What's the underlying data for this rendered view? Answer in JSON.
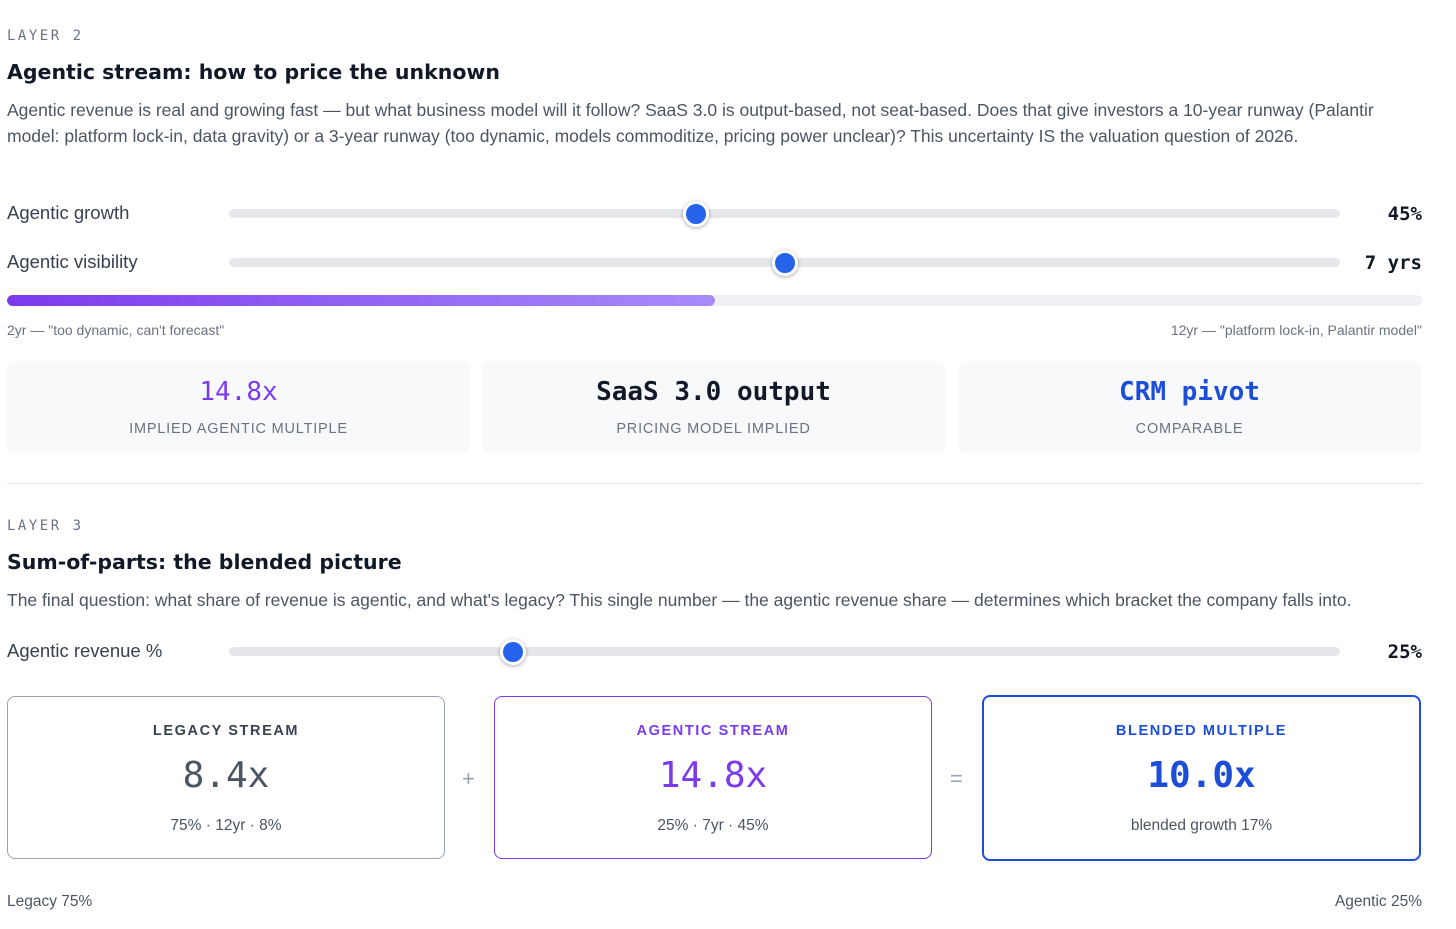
{
  "layer2": {
    "eyebrow": "LAYER 2",
    "title": "Agentic stream: how to price the unknown",
    "description": "Agentic revenue is real and growing fast — but what business model will it follow? SaaS 3.0 is output-based, not seat-based. Does that give investors a 10-year runway (Palantir model: platform lock-in, data gravity) or a 3-year runway (too dynamic, models commoditize, pricing power unclear)? This uncertainty IS the valuation question of 2026.",
    "sliders": {
      "growth": {
        "label": "Agentic growth",
        "value_text": "45%",
        "level": 0.42
      },
      "visibility": {
        "label": "Agentic visibility",
        "value_text": "7 yrs",
        "level": 0.5
      }
    },
    "visibility_bar": {
      "fill_fraction": 0.5,
      "min_note": "2yr — \"too dynamic, can't forecast\"",
      "max_note": "12yr — \"platform lock-in, Palantir model\""
    },
    "stats": [
      {
        "value": "14.8x",
        "label": "IMPLIED AGENTIC MULTIPLE",
        "color": "#7c3aed"
      },
      {
        "value": "SaaS 3.0 output",
        "label": "PRICING MODEL IMPLIED",
        "color": "#111827"
      },
      {
        "value": "CRM pivot",
        "label": "COMPARABLE",
        "color": "#1d4ed8"
      }
    ]
  },
  "layer3": {
    "eyebrow": "LAYER 3",
    "title": "Sum-of-parts: the blended picture",
    "description": "The final question: what share of revenue is agentic, and what's legacy? This single number — the agentic revenue share — determines which bracket the company falls into.",
    "slider": {
      "label": "Agentic revenue %",
      "value_text": "25%",
      "level": 0.256
    },
    "cards": {
      "legacy": {
        "title": "LEGACY STREAM",
        "value": "8.4x",
        "sub": "75% · 12yr · 8%",
        "color": "#4b5563",
        "border": "#9ca3af"
      },
      "agentic": {
        "title": "AGENTIC STREAM",
        "value": "14.8x",
        "sub": "25% · 7yr · 45%",
        "color": "#7c3aed",
        "border": "#7c3aed"
      },
      "blended": {
        "title": "BLENDED MULTIPLE",
        "value": "10.0x",
        "sub": "blended growth 17%",
        "color": "#1d4ed8",
        "border": "#1d4ed8"
      }
    },
    "operators": {
      "plus": "+",
      "equals": "="
    },
    "footer": {
      "legacy": "Legacy 75%",
      "agentic": "Agentic 25%"
    }
  }
}
